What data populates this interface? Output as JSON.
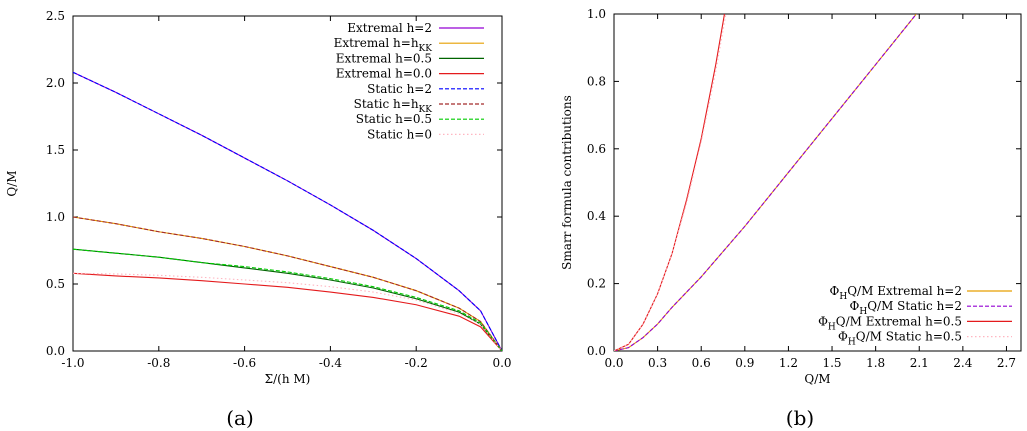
{
  "chart_data": [
    {
      "type": "line",
      "caption": "(a)",
      "xlabel": "Σ/(h M)",
      "ylabel": "Q/M",
      "xlim": [
        -1.0,
        0.0
      ],
      "ylim": [
        0,
        2.5
      ],
      "x_ticks": [
        "-1.0",
        "-0.8",
        "-0.6",
        "-0.4",
        "-0.2",
        "0.0"
      ],
      "y_ticks": [
        "0.0",
        "0.5",
        "1.0",
        "1.5",
        "2.0",
        "2.5"
      ],
      "grid": false,
      "legend_position": "top-right",
      "series": [
        {
          "name": "Extremal h=2",
          "label_base": "Extremal h=",
          "label_value": "2",
          "color": "#9400d3",
          "style": "solid",
          "x": [
            -1.0,
            -0.9,
            -0.8,
            -0.7,
            -0.6,
            -0.5,
            -0.4,
            -0.3,
            -0.2,
            -0.1,
            -0.05,
            0.0
          ],
          "y": [
            2.08,
            1.93,
            1.77,
            1.61,
            1.44,
            1.27,
            1.09,
            0.9,
            0.69,
            0.45,
            0.3,
            0.0
          ]
        },
        {
          "name": "Extremal h=hKK",
          "label_base": "Extremal h=h",
          "label_sub": "KK",
          "color": "#e69f00",
          "style": "solid",
          "x": [
            -1.0,
            -0.9,
            -0.8,
            -0.7,
            -0.6,
            -0.5,
            -0.4,
            -0.3,
            -0.2,
            -0.1,
            -0.05,
            0.0
          ],
          "y": [
            1.0,
            0.95,
            0.89,
            0.84,
            0.78,
            0.71,
            0.63,
            0.55,
            0.45,
            0.32,
            0.22,
            0.0
          ]
        },
        {
          "name": "Extremal h=0.5",
          "label_base": "Extremal h=",
          "label_value": "0.5",
          "color": "#006400",
          "style": "solid",
          "x": [
            -1.0,
            -0.9,
            -0.8,
            -0.7,
            -0.6,
            -0.5,
            -0.4,
            -0.3,
            -0.2,
            -0.1,
            -0.05,
            0.0
          ],
          "y": [
            0.76,
            0.73,
            0.7,
            0.66,
            0.62,
            0.58,
            0.53,
            0.47,
            0.39,
            0.29,
            0.2,
            0.0
          ]
        },
        {
          "name": "Extremal h=0.0",
          "label_base": "Extremal h=",
          "label_value": "0.0",
          "color": "#e41a1c",
          "style": "solid",
          "x": [
            -1.0,
            -0.9,
            -0.8,
            -0.7,
            -0.6,
            -0.5,
            -0.4,
            -0.3,
            -0.2,
            -0.1,
            -0.05,
            0.0
          ],
          "y": [
            0.58,
            0.56,
            0.545,
            0.525,
            0.5,
            0.475,
            0.44,
            0.4,
            0.345,
            0.26,
            0.18,
            0.0
          ]
        },
        {
          "name": "Static h=2",
          "label_base": "Static h=",
          "label_value": "2",
          "color": "#0000ff",
          "style": "dashed",
          "x": [
            -1.0,
            -0.9,
            -0.8,
            -0.7,
            -0.6,
            -0.5,
            -0.4,
            -0.3,
            -0.2,
            -0.1,
            -0.05,
            0.0
          ],
          "y": [
            2.08,
            1.93,
            1.77,
            1.61,
            1.44,
            1.27,
            1.09,
            0.9,
            0.69,
            0.45,
            0.3,
            0.0
          ]
        },
        {
          "name": "Static h=hKK",
          "label_base": "Static h=h",
          "label_sub": "KK",
          "color": "#a52a2a",
          "style": "dashed",
          "x": [
            -1.0,
            -0.9,
            -0.8,
            -0.7,
            -0.6,
            -0.5,
            -0.4,
            -0.3,
            -0.2,
            -0.1,
            -0.05,
            0.0
          ],
          "y": [
            1.0,
            0.95,
            0.89,
            0.84,
            0.78,
            0.71,
            0.63,
            0.55,
            0.45,
            0.32,
            0.22,
            0.0
          ]
        },
        {
          "name": "Static h=0.5",
          "label_base": "Static h=",
          "label_value": "0.5",
          "color": "#00cc00",
          "style": "dashed",
          "x": [
            -1.0,
            -0.9,
            -0.8,
            -0.7,
            -0.6,
            -0.5,
            -0.4,
            -0.3,
            -0.2,
            -0.1,
            -0.05,
            0.0
          ],
          "y": [
            0.76,
            0.73,
            0.7,
            0.66,
            0.63,
            0.59,
            0.54,
            0.48,
            0.4,
            0.3,
            0.21,
            0.0
          ]
        },
        {
          "name": "Static h=0",
          "label_base": "Static h=",
          "label_value": "0",
          "color": "#ffb6c1",
          "style": "dotted",
          "x": [
            -1.0,
            -0.9,
            -0.8,
            -0.7,
            -0.6,
            -0.5,
            -0.4,
            -0.3,
            -0.2,
            -0.1,
            -0.05,
            0.0
          ],
          "y": [
            0.58,
            0.575,
            0.565,
            0.55,
            0.53,
            0.51,
            0.48,
            0.44,
            0.38,
            0.28,
            0.2,
            0.0
          ]
        }
      ]
    },
    {
      "type": "line",
      "caption": "(b)",
      "xlabel": "Q/M",
      "ylabel": "Smarr formula contributions",
      "xlim": [
        0,
        2.8
      ],
      "ylim": [
        0,
        1.0
      ],
      "x_ticks": [
        "0.0",
        "0.3",
        "0.6",
        "0.9",
        "1.2",
        "1.5",
        "1.8",
        "2.1",
        "2.4",
        "2.7"
      ],
      "y_ticks": [
        "0.0",
        "0.2",
        "0.4",
        "0.6",
        "0.8",
        "1.0"
      ],
      "grid": false,
      "legend_position": "bottom-right",
      "series": [
        {
          "name": "ΦHQ/M Extremal h=2",
          "label_base": "Φ",
          "label_sub": "H",
          "label_rest": "Q/M Extremal h=2",
          "color": "#e69f00",
          "style": "solid",
          "x": [
            0,
            0.1,
            0.2,
            0.3,
            0.4,
            0.6,
            0.9,
            1.2,
            1.5,
            1.8,
            2.08
          ],
          "y": [
            0,
            0.01,
            0.04,
            0.08,
            0.13,
            0.22,
            0.37,
            0.53,
            0.69,
            0.85,
            1.0
          ]
        },
        {
          "name": "ΦHQ/M Static h=2",
          "label_base": "Φ",
          "label_sub": "H",
          "label_rest": "Q/M Static h=2",
          "color": "#9400d3",
          "style": "dashed",
          "x": [
            0,
            0.1,
            0.2,
            0.3,
            0.4,
            0.6,
            0.9,
            1.2,
            1.5,
            1.8,
            2.08
          ],
          "y": [
            0,
            0.01,
            0.04,
            0.08,
            0.13,
            0.22,
            0.37,
            0.53,
            0.69,
            0.85,
            1.0
          ]
        },
        {
          "name": "ΦHQ/M Extremal h=0.5",
          "label_base": "Φ",
          "label_sub": "H",
          "label_rest": "Q/M Extremal h=0.5",
          "color": "#e41a1c",
          "style": "solid",
          "x": [
            0,
            0.1,
            0.2,
            0.3,
            0.4,
            0.5,
            0.6,
            0.7,
            0.76
          ],
          "y": [
            0,
            0.02,
            0.08,
            0.17,
            0.29,
            0.45,
            0.63,
            0.85,
            1.0
          ]
        },
        {
          "name": "ΦHQ/M Static h=0.5",
          "label_base": "Φ",
          "label_sub": "H",
          "label_rest": "Q/M Static h=0.5",
          "color": "#ffb6c1",
          "style": "dotted",
          "x": [
            0,
            0.1,
            0.2,
            0.3,
            0.4,
            0.5,
            0.6,
            0.7,
            0.77
          ],
          "y": [
            0,
            0.02,
            0.08,
            0.17,
            0.29,
            0.44,
            0.62,
            0.83,
            1.0
          ]
        }
      ]
    }
  ]
}
